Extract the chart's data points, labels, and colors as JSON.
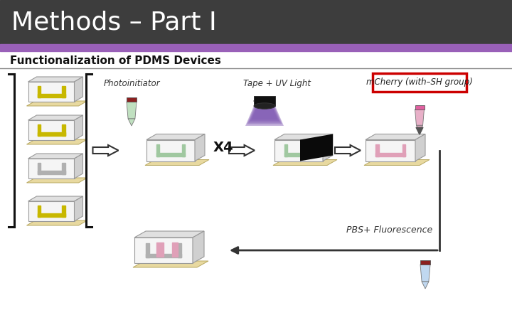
{
  "title": "Methods – Part I",
  "title_bg": "#3d3d3d",
  "title_color": "#ffffff",
  "title_fontsize": 26,
  "purple_bar_color": "#9960b8",
  "subtitle": "Functionalization of PDMS Devices",
  "subtitle_fontsize": 11,
  "bg_color": "#ffffff",
  "label_photoinitiator": "Photoinitiator",
  "label_tape_uv": "Tape + UV Light",
  "label_mcherry": "mCherry (with–SH group)",
  "label_pbs": "PBS+ Fluorescence",
  "label_x4": "X4",
  "mcherry_box_color": "#cc0000",
  "pdms_fill": "#f5f5f5",
  "pdms_edge": "#999999",
  "base_fill": "#e8d9a0",
  "base_edge": "#b8a860",
  "channel_yellow": "#c8b800",
  "channel_green": "#a0c8a0",
  "channel_pink": "#e0a0b8",
  "channel_grey": "#b0b0b0",
  "tube_green_fill": "#c0e0c0",
  "tube_green_cap": "#8b2020",
  "tube_pink_fill": "#e8b0c8",
  "tube_pink_cap": "#e060a0",
  "tube_blue_fill": "#c0d8f0",
  "tube_blue_cap": "#8b2020",
  "uv_purple": "#6030a0",
  "uv_black": "#101010",
  "arrow_fill": "#ffffff",
  "arrow_edge": "#333333"
}
